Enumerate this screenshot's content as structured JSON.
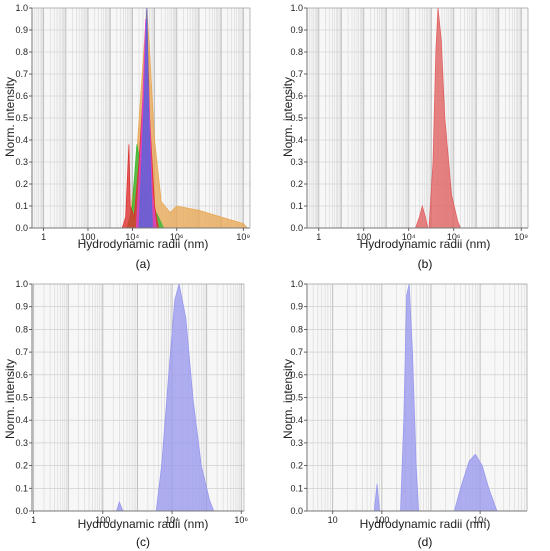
{
  "chart_data": [
    {
      "panel": "(a)",
      "type": "area",
      "xlabel": "Hydrodynamic radii (nm)",
      "ylabel": "Norm. intensity",
      "xscale": "log",
      "xlim": [
        0.3,
        2000000000
      ],
      "ylim": [
        0,
        1.0
      ],
      "xticks": [
        {
          "v": 1,
          "label": "1"
        },
        {
          "v": 100,
          "label": "100"
        },
        {
          "v": 10000,
          "label": "10⁴"
        },
        {
          "v": 1000000,
          "label": "10⁶"
        },
        {
          "v": 1000000000,
          "label": "10⁹"
        }
      ],
      "yticks": [
        0.0,
        0.1,
        0.2,
        0.3,
        0.4,
        0.5,
        0.6,
        0.7,
        0.8,
        0.9,
        1.0
      ],
      "grid": true,
      "series": [
        {
          "color": "#e8a855",
          "points": [
            [
              5000,
              0
            ],
            [
              8000,
              0.05
            ],
            [
              15000,
              0.3
            ],
            [
              30000,
              0.75
            ],
            [
              45000,
              1.0
            ],
            [
              60000,
              0.8
            ],
            [
              100000,
              0.4
            ],
            [
              200000,
              0.12
            ],
            [
              500000,
              0.07
            ],
            [
              1000000,
              0.1
            ],
            [
              10000000,
              0.08
            ],
            [
              100000000,
              0.05
            ],
            [
              1000000000,
              0.02
            ],
            [
              1500000000,
              0
            ]
          ]
        },
        {
          "color": "#33bb33",
          "points": [
            [
              6000,
              0
            ],
            [
              10000,
              0.1
            ],
            [
              16000,
              0.38
            ],
            [
              22000,
              0.3
            ],
            [
              35000,
              0.2
            ],
            [
              80000,
              0.1
            ],
            [
              150000,
              0.05
            ],
            [
              250000,
              0
            ]
          ]
        },
        {
          "color": "#e03030",
          "points": [
            [
              3500,
              0
            ],
            [
              5000,
              0.05
            ],
            [
              7000,
              0.38
            ],
            [
              8000,
              0.1
            ],
            [
              12000,
              0.05
            ],
            [
              20000,
              0.3
            ],
            [
              30000,
              0.6
            ],
            [
              45000,
              0.95
            ],
            [
              60000,
              0.5
            ],
            [
              100000,
              0.1
            ],
            [
              150000,
              0
            ]
          ]
        },
        {
          "color": "#dd44cc",
          "points": [
            [
              15000,
              0
            ],
            [
              25000,
              0.4
            ],
            [
              40000,
              0.95
            ],
            [
              55000,
              0.6
            ],
            [
              80000,
              0.15
            ],
            [
              120000,
              0
            ]
          ]
        },
        {
          "color": "#5566dd",
          "points": [
            [
              20000,
              0
            ],
            [
              35000,
              0.6
            ],
            [
              45000,
              1.0
            ],
            [
              55000,
              0.5
            ],
            [
              80000,
              0
            ]
          ]
        }
      ]
    },
    {
      "panel": "(b)",
      "type": "area",
      "xlabel": "Hydrodynamic radii (nm)",
      "ylabel": "Norm. intensity",
      "xscale": "log",
      "xlim": [
        0.3,
        2000000000
      ],
      "ylim": [
        0,
        1.0
      ],
      "xticks": [
        {
          "v": 1,
          "label": "1"
        },
        {
          "v": 100,
          "label": "100"
        },
        {
          "v": 10000,
          "label": "10⁴"
        },
        {
          "v": 1000000,
          "label": "10⁶"
        },
        {
          "v": 1000000000,
          "label": "10⁹"
        }
      ],
      "yticks": [
        0.0,
        0.1,
        0.2,
        0.3,
        0.4,
        0.5,
        0.6,
        0.7,
        0.8,
        0.9,
        1.0
      ],
      "grid": true,
      "series": [
        {
          "color": "#e06060",
          "points": [
            [
              20000,
              0
            ],
            [
              30000,
              0.05
            ],
            [
              40000,
              0.1
            ],
            [
              55000,
              0.05
            ],
            [
              70000,
              0
            ]
          ]
        },
        {
          "color": "#e06060",
          "points": [
            [
              80000,
              0
            ],
            [
              120000,
              0.3
            ],
            [
              160000,
              0.8
            ],
            [
              200000,
              1.0
            ],
            [
              280000,
              0.85
            ],
            [
              400000,
              0.5
            ],
            [
              800000,
              0.15
            ],
            [
              1500000,
              0.03
            ],
            [
              2000000,
              0
            ]
          ]
        }
      ]
    },
    {
      "panel": "(c)",
      "type": "area",
      "xlabel": "Hydrodynamic radii (nm)",
      "ylabel": "Norm. intensity",
      "xscale": "log",
      "xlim": [
        0.9,
        1200000
      ],
      "ylim": [
        0,
        1.0
      ],
      "xticks": [
        {
          "v": 1,
          "label": "1"
        },
        {
          "v": 100,
          "label": "100"
        },
        {
          "v": 10000,
          "label": "10⁴"
        },
        {
          "v": 1000000,
          "label": "10⁶"
        }
      ],
      "yticks": [
        0.0,
        0.1,
        0.2,
        0.3,
        0.4,
        0.5,
        0.6,
        0.7,
        0.8,
        0.9,
        1.0
      ],
      "grid": true,
      "series": [
        {
          "color": "#9999ee",
          "points": [
            [
              250,
              0
            ],
            [
              300,
              0.04
            ],
            [
              380,
              0
            ]
          ]
        },
        {
          "color": "#9999ee",
          "points": [
            [
              3500,
              0
            ],
            [
              5000,
              0.2
            ],
            [
              8000,
              0.6
            ],
            [
              12000,
              0.93
            ],
            [
              16000,
              1.0
            ],
            [
              25000,
              0.85
            ],
            [
              40000,
              0.5
            ],
            [
              70000,
              0.2
            ],
            [
              120000,
              0.05
            ],
            [
              160000,
              0
            ]
          ]
        }
      ]
    },
    {
      "panel": "(d)",
      "type": "area",
      "xlabel": "Hydrodynamic radii (nm)",
      "ylabel": "Norm. intensity",
      "xscale": "log",
      "xlim": [
        3,
        90000
      ],
      "ylim": [
        0,
        1.0
      ],
      "xticks": [
        {
          "v": 10,
          "label": "10"
        },
        {
          "v": 100,
          "label": "100"
        },
        {
          "v": 10000,
          "label": "10⁴"
        }
      ],
      "yticks": [
        0.0,
        0.1,
        0.2,
        0.3,
        0.4,
        0.5,
        0.6,
        0.7,
        0.8,
        0.9,
        1.0
      ],
      "grid": true,
      "series": [
        {
          "color": "#9999ee",
          "points": [
            [
              70,
              0
            ],
            [
              80,
              0.12
            ],
            [
              90,
              0
            ]
          ]
        },
        {
          "color": "#9999ee",
          "points": [
            [
              240,
              0
            ],
            [
              280,
              0.4
            ],
            [
              320,
              0.95
            ],
            [
              360,
              1.0
            ],
            [
              420,
              0.7
            ],
            [
              500,
              0.2
            ],
            [
              560,
              0
            ]
          ]
        },
        {
          "color": "#9999ee",
          "points": [
            [
              3000,
              0
            ],
            [
              4000,
              0.1
            ],
            [
              6000,
              0.22
            ],
            [
              8000,
              0.25
            ],
            [
              11000,
              0.2
            ],
            [
              15000,
              0.1
            ],
            [
              22000,
              0
            ]
          ]
        }
      ]
    }
  ]
}
